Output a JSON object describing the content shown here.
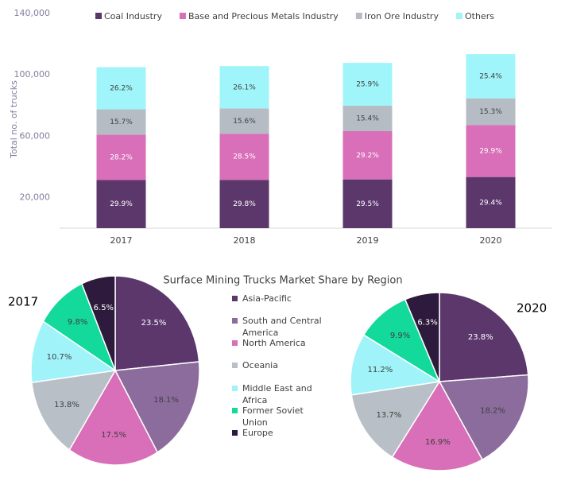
{
  "chart_data": [
    {
      "type": "bar",
      "categories": [
        "2017",
        "2018",
        "2019",
        "2020"
      ],
      "totals": [
        105000,
        105700,
        107800,
        113500
      ],
      "ylabel": "Total no. of trucks",
      "ylim": [
        0,
        140000
      ],
      "yticks": [
        {
          "value": 20000,
          "label": "20,000"
        },
        {
          "value": 60000,
          "label": "60,000"
        },
        {
          "value": 100000,
          "label": "100,000"
        },
        {
          "value": 140000,
          "label": "140,000"
        }
      ],
      "legend": "top",
      "series": [
        {
          "name": "Coal Industry",
          "color": "#5b376c",
          "values": [
            29.9,
            29.8,
            29.5,
            29.4
          ],
          "value_labels": [
            "29.9%",
            "29.8%",
            "29.5%",
            "29.4%"
          ]
        },
        {
          "name": "Base and Precious Metals Industry",
          "color": "#d86fb8",
          "values": [
            28.2,
            28.5,
            29.2,
            29.9
          ],
          "value_labels": [
            "28.2%",
            "28.5%",
            "29.2%",
            "29.9%"
          ]
        },
        {
          "name": "Iron Ore Industry",
          "color": "#b5bcc4",
          "values": [
            15.7,
            15.6,
            15.4,
            15.3
          ],
          "value_labels": [
            "15.7%",
            "15.6%",
            "15.4%",
            "15.3%"
          ]
        },
        {
          "name": "Others",
          "color": "#9ff5f9",
          "values": [
            26.2,
            26.1,
            25.9,
            25.4
          ],
          "value_labels": [
            "26.2%",
            "26.1%",
            "25.9%",
            "25.4%"
          ]
        }
      ]
    },
    {
      "type": "pie",
      "title": "Surface Mining Trucks Market Share by Region",
      "categories": [
        "Asia-Pacific",
        "South and Central America",
        "North America",
        "Oceania",
        "Middle East and Africa",
        "Former Soviet Union",
        "Europe"
      ],
      "colors": [
        "#5b376c",
        "#8b6c9d",
        "#d86fb8",
        "#b9bfc6",
        "#a0f4f9",
        "#13d99b",
        "#2d1a3d"
      ],
      "pies": [
        {
          "label": "2017",
          "values": [
            23.5,
            18.1,
            17.5,
            13.8,
            10.7,
            9.8,
            6.5
          ],
          "value_labels": [
            "23.5%",
            "18.1%",
            "17.5%",
            "13.8%",
            "10.7%",
            "9.8%",
            "6.5%"
          ]
        },
        {
          "label": "2020",
          "values": [
            23.8,
            18.2,
            16.9,
            13.7,
            11.2,
            9.9,
            6.3
          ],
          "value_labels": [
            "23.8%",
            "18.2%",
            "16.9%",
            "13.7%",
            "11.2%",
            "9.9%",
            "6.3%"
          ]
        }
      ]
    }
  ]
}
